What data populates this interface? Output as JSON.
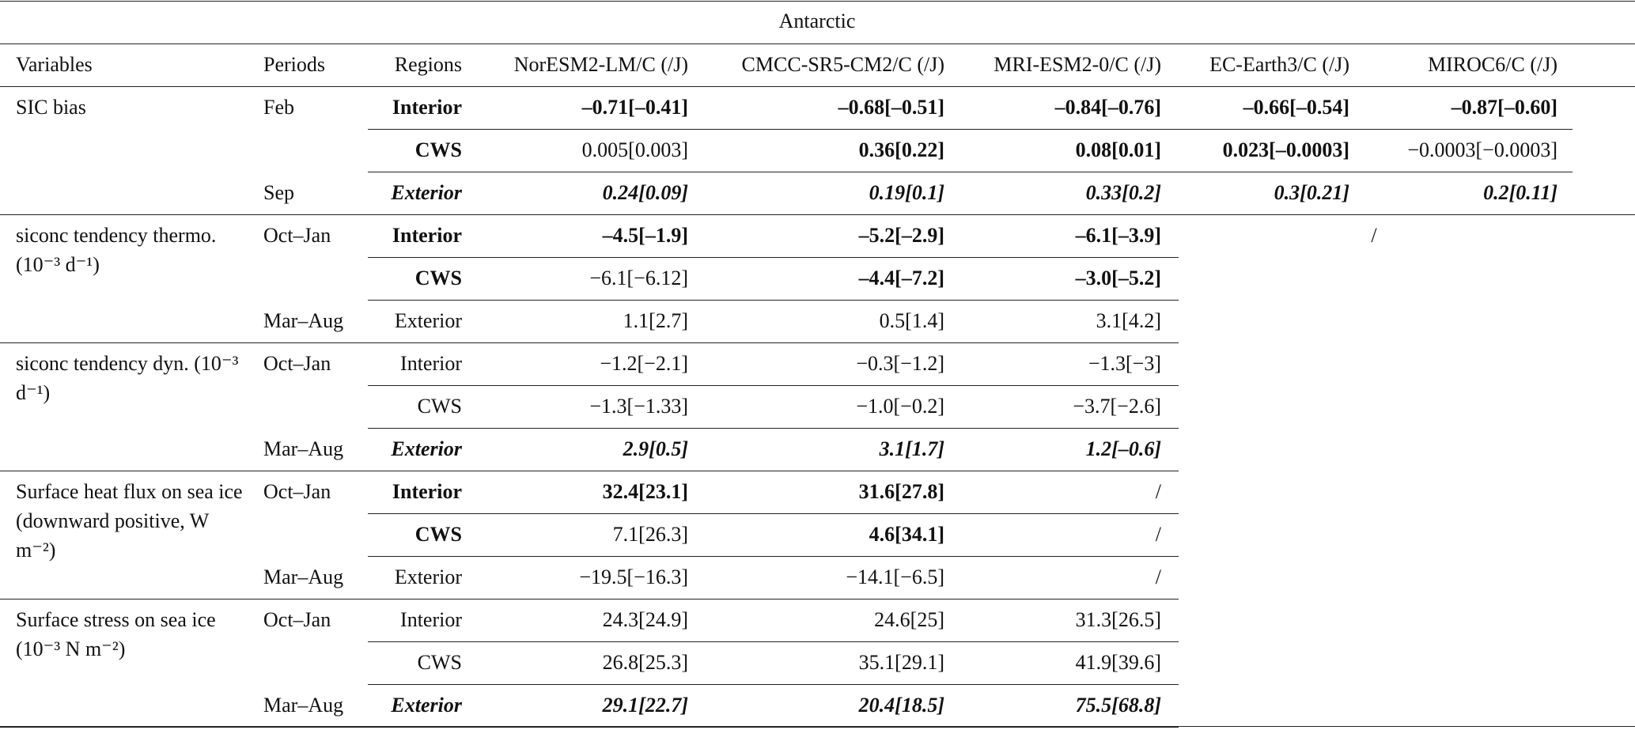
{
  "title": "Antarctic",
  "columns": [
    "Variables",
    "Periods",
    "Regions",
    "NorESM2-LM/C (/J)",
    "CMCC-SR5-CM2/C (/J)",
    "MRI-ESM2-0/C (/J)",
    "EC-Earth3/C (/J)",
    "MIROC6/C (/J)"
  ],
  "missing": "/",
  "groups": [
    {
      "variable": "SIC bias",
      "rows": [
        {
          "period": "Feb",
          "region": "Interior",
          "values": [
            "–0.71[–0.41]",
            "–0.68[–0.51]",
            "–0.84[–0.76]",
            "–0.66[–0.54]",
            "–0.87[–0.60]"
          ],
          "font": [
            "bold",
            "bold",
            "bold",
            "bold",
            "bold",
            "bold"
          ]
        },
        {
          "region": "CWS",
          "values": [
            "0.005[0.003]",
            "0.36[0.22]",
            "0.08[0.01]",
            "0.023[–0.0003]",
            "−0.0003[−0.0003]"
          ],
          "font": [
            "bold",
            "normal",
            "bold",
            "bold",
            "bold",
            "normal"
          ]
        },
        {
          "period": "Sep",
          "region": "Exterior",
          "values": [
            "0.24[0.09]",
            "0.19[0.1]",
            "0.33[0.2]",
            "0.3[0.21]",
            "0.2[0.11]"
          ],
          "font": [
            "bold-italic",
            "bold-italic",
            "bold-italic",
            "bold-italic",
            "bold-italic",
            "bold-italic"
          ]
        }
      ]
    },
    {
      "variable": "siconc tendency thermo. (10⁻³ d⁻¹)",
      "rows": [
        {
          "period": "Oct–Jan",
          "region": "Interior",
          "values": [
            "–4.5[–1.9]",
            "–5.2[–2.9]",
            "–6.1[–3.9]"
          ],
          "font": [
            "bold",
            "bold",
            "bold",
            "bold"
          ]
        },
        {
          "region": "CWS",
          "values": [
            "−6.1[−6.12]",
            "–4.4[–7.2]",
            "–3.0[–5.2]"
          ],
          "font": [
            "bold",
            "normal",
            "bold",
            "bold"
          ]
        },
        {
          "period": "Mar–Aug",
          "region": "Exterior",
          "values": [
            "1.1[2.7]",
            "0.5[1.4]",
            "3.1[4.2]"
          ],
          "font": [
            "normal",
            "normal",
            "normal",
            "normal"
          ]
        }
      ]
    },
    {
      "variable": "siconc tendency dyn. (10⁻³ d⁻¹)",
      "rows": [
        {
          "period": "Oct–Jan",
          "region": "Interior",
          "values": [
            "−1.2[−2.1]",
            "−0.3[−1.2]",
            "−1.3[−3]"
          ],
          "font": [
            "normal",
            "normal",
            "normal",
            "normal"
          ]
        },
        {
          "region": "CWS",
          "values": [
            "−1.3[−1.33]",
            "−1.0[−0.2]",
            "−3.7[−2.6]"
          ],
          "font": [
            "normal",
            "normal",
            "normal",
            "normal"
          ]
        },
        {
          "period": "Mar–Aug",
          "region": "Exterior",
          "values": [
            "2.9[0.5]",
            "3.1[1.7]",
            "1.2[–0.6]"
          ],
          "font": [
            "bold-italic",
            "bold-italic",
            "bold-italic",
            "bold-italic"
          ]
        }
      ]
    },
    {
      "variable": "Surface heat flux on sea ice (downward positive, W m⁻²)",
      "rows": [
        {
          "period": "Oct–Jan",
          "region": "Interior",
          "values": [
            "32.4[23.1]",
            "31.6[27.8]",
            "/"
          ],
          "font": [
            "bold",
            "bold",
            "bold",
            "normal"
          ]
        },
        {
          "region": "CWS",
          "values": [
            "7.1[26.3]",
            "4.6[34.1]",
            "/"
          ],
          "font": [
            "bold",
            "normal",
            "bold",
            "normal"
          ]
        },
        {
          "period": "Mar–Aug",
          "region": "Exterior",
          "values": [
            "−19.5[−16.3]",
            "−14.1[−6.5]",
            "/"
          ],
          "font": [
            "normal",
            "normal",
            "normal",
            "normal"
          ]
        }
      ]
    },
    {
      "variable": "Surface stress on sea ice (10⁻³ N m⁻²)",
      "rows": [
        {
          "period": "Oct–Jan",
          "region": "Interior",
          "values": [
            "24.3[24.9]",
            "24.6[25]",
            "31.3[26.5]"
          ],
          "font": [
            "normal",
            "normal",
            "normal",
            "normal"
          ]
        },
        {
          "region": "CWS",
          "values": [
            "26.8[25.3]",
            "35.1[29.1]",
            "41.9[39.6]"
          ],
          "font": [
            "normal",
            "normal",
            "normal",
            "normal"
          ]
        },
        {
          "period": "Mar–Aug",
          "region": "Exterior",
          "values": [
            "29.1[22.7]",
            "20.4[18.5]",
            "75.5[68.8]"
          ],
          "font": [
            "bold-italic",
            "bold-italic",
            "bold-italic",
            "bold-italic"
          ]
        }
      ]
    }
  ]
}
